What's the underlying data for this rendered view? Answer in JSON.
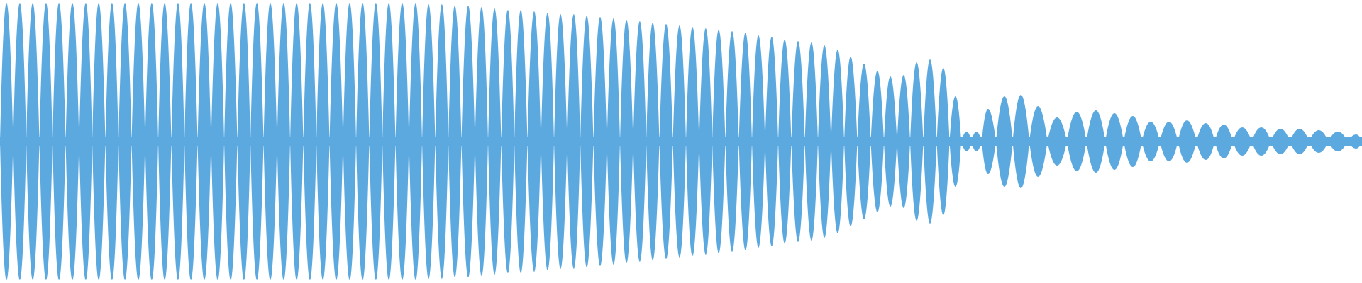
{
  "chart_data": {
    "type": "waveform",
    "color": "#5ca9e0",
    "xlim": [
      0,
      1920
    ],
    "ylim": [
      -1,
      1
    ],
    "x": [
      9,
      28,
      46,
      65,
      83,
      102,
      121,
      139,
      158,
      176,
      195,
      214,
      232,
      251,
      269,
      288,
      307,
      325,
      344,
      362,
      381,
      400,
      418,
      437,
      455,
      474,
      493,
      511,
      530,
      548,
      567,
      586,
      604,
      623,
      641,
      660,
      679,
      697,
      716,
      734,
      753,
      772,
      790,
      809,
      827,
      846,
      865,
      883,
      902,
      920,
      939,
      958,
      976,
      995,
      1013,
      1032,
      1051,
      1069,
      1088,
      1106,
      1125,
      1144,
      1162,
      1181,
      1199,
      1218,
      1237,
      1255,
      1274,
      1292,
      1311,
      1330,
      1347,
      1363,
      1376,
      1392,
      1416,
      1439,
      1463,
      1490,
      1518,
      1545,
      1571,
      1597,
      1622,
      1648,
      1673,
      1700,
      1725,
      1751,
      1778,
      1805,
      1832,
      1859,
      1886,
      1913
    ],
    "values": [
      0.98,
      0.98,
      0.98,
      0.98,
      0.98,
      0.98,
      0.98,
      0.98,
      0.98,
      0.98,
      0.98,
      0.98,
      0.98,
      0.98,
      0.98,
      0.98,
      0.98,
      0.98,
      0.98,
      0.98,
      0.98,
      0.98,
      0.98,
      0.98,
      0.98,
      0.98,
      0.98,
      0.98,
      0.98,
      0.98,
      0.98,
      0.98,
      0.97,
      0.97,
      0.96,
      0.96,
      0.95,
      0.94,
      0.93,
      0.93,
      0.92,
      0.91,
      0.9,
      0.9,
      0.89,
      0.88,
      0.87,
      0.86,
      0.85,
      0.84,
      0.83,
      0.82,
      0.81,
      0.8,
      0.79,
      0.78,
      0.77,
      0.75,
      0.74,
      0.72,
      0.71,
      0.7,
      0.68,
      0.65,
      0.6,
      0.55,
      0.5,
      0.46,
      0.47,
      0.56,
      0.58,
      0.52,
      0.32,
      0.07,
      0.07,
      0.23,
      0.32,
      0.33,
      0.25,
      0.17,
      0.21,
      0.22,
      0.2,
      0.18,
      0.14,
      0.14,
      0.15,
      0.13,
      0.12,
      0.1,
      0.1,
      0.09,
      0.09,
      0.08,
      0.07,
      0.05
    ]
  }
}
